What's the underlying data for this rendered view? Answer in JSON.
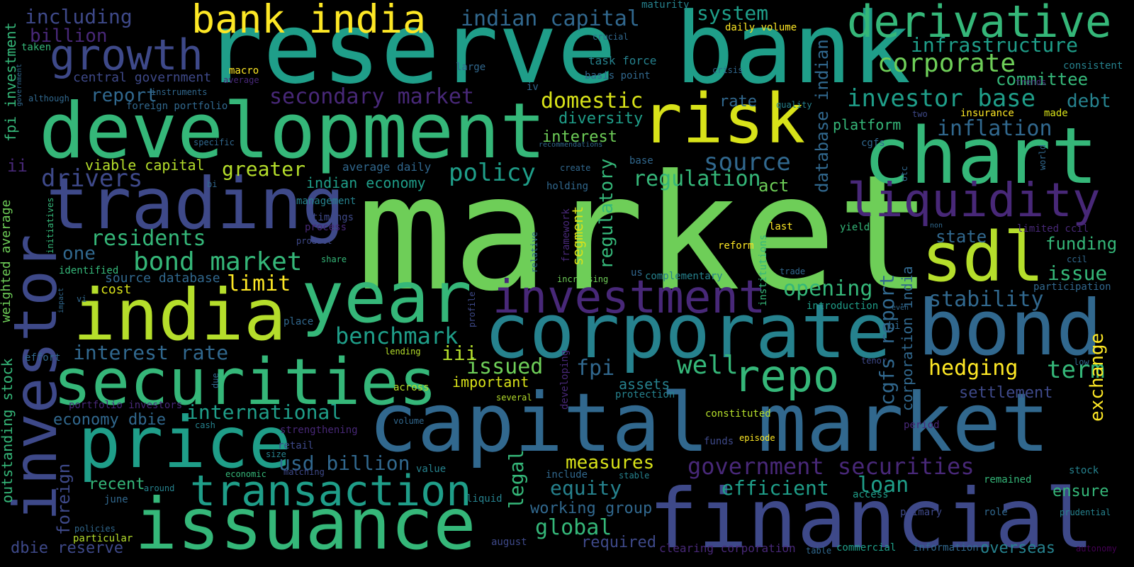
{
  "palette": {
    "background": "#000000",
    "yellow": "#FDE725",
    "lime": "#B5DE2B",
    "green": "#6ECE58",
    "teal_green": "#35B779",
    "teal": "#1F9E89",
    "cyan_blue": "#26828E",
    "blue": "#31688E",
    "indigo": "#3E4989",
    "purple": "#482878",
    "dark_purple": "#440154"
  },
  "words": [
    {
      "text": "market",
      "color": "#6ECE58"
    },
    {
      "text": "reserve bank",
      "color": "#1F9E89"
    },
    {
      "text": "development",
      "color": "#35B779"
    },
    {
      "text": "capital market",
      "color": "#31688E"
    },
    {
      "text": "financial",
      "color": "#3E4989"
    },
    {
      "text": "corporate",
      "color": "#26828E"
    },
    {
      "text": "bond",
      "color": "#31688E"
    },
    {
      "text": "chart",
      "color": "#35B779"
    },
    {
      "text": "trading",
      "color": "#3E4989"
    },
    {
      "text": "india",
      "color": "#B5DE2B"
    },
    {
      "text": "year",
      "color": "#35B779"
    },
    {
      "text": "securities",
      "color": "#35B779"
    },
    {
      "text": "price",
      "color": "#1F9E89"
    },
    {
      "text": "issuance",
      "color": "#35B779"
    },
    {
      "text": "risk",
      "color": "#D8E219"
    },
    {
      "text": "sdl",
      "color": "#B5DE2B"
    },
    {
      "text": "investor",
      "color": "#3E4989"
    },
    {
      "text": "derivative",
      "color": "#35B779"
    },
    {
      "text": "bank india",
      "color": "#FDE725"
    },
    {
      "text": "growth",
      "color": "#3E4989"
    },
    {
      "text": "liquidity",
      "color": "#482878"
    },
    {
      "text": "investment",
      "color": "#482878"
    },
    {
      "text": "repo",
      "color": "#35B779"
    },
    {
      "text": "transaction",
      "color": "#1F9E89"
    },
    {
      "text": "corporate",
      "color": "#6ECE58"
    },
    {
      "text": "investor base",
      "color": "#1F9E89"
    },
    {
      "text": "infrastructure",
      "color": "#1F9E89"
    },
    {
      "text": "indian capital",
      "color": "#31688E"
    },
    {
      "text": "system",
      "color": "#1F9E89"
    },
    {
      "text": "secondary market",
      "color": "#482878"
    },
    {
      "text": "domestic",
      "color": "#D8E219"
    },
    {
      "text": "inflation",
      "color": "#31688E"
    },
    {
      "text": "debt",
      "color": "#26828E"
    },
    {
      "text": "committee",
      "color": "#35B779"
    },
    {
      "text": "source",
      "color": "#31688E"
    },
    {
      "text": "policy",
      "color": "#1F9E89"
    },
    {
      "text": "regulation",
      "color": "#35B779"
    },
    {
      "text": "greater",
      "color": "#B5DE2B"
    },
    {
      "text": "drivers",
      "color": "#3E4989"
    },
    {
      "text": "residents",
      "color": "#35B779"
    },
    {
      "text": "bond market",
      "color": "#35B779"
    },
    {
      "text": "one",
      "color": "#31688E"
    },
    {
      "text": "limit",
      "color": "#FDE725"
    },
    {
      "text": "benchmark",
      "color": "#1F9E89"
    },
    {
      "text": "interest rate",
      "color": "#31688E"
    },
    {
      "text": "international",
      "color": "#1F9E89"
    },
    {
      "text": "issued",
      "color": "#6ECE58"
    },
    {
      "text": "iii",
      "color": "#B5DE2B"
    },
    {
      "text": "fpi",
      "color": "#31688E"
    },
    {
      "text": "well",
      "color": "#35B779"
    },
    {
      "text": "hedging",
      "color": "#FDE725"
    },
    {
      "text": "term",
      "color": "#35B779"
    },
    {
      "text": "stability",
      "color": "#31688E"
    },
    {
      "text": "opening",
      "color": "#35B779"
    },
    {
      "text": "issue",
      "color": "#35B779"
    },
    {
      "text": "funding",
      "color": "#35B779"
    },
    {
      "text": "state",
      "color": "#31688E"
    },
    {
      "text": "settlement",
      "color": "#3E4989"
    },
    {
      "text": "government securities",
      "color": "#482878"
    },
    {
      "text": "efficient",
      "color": "#1F9E89"
    },
    {
      "text": "loan",
      "color": "#1F9E89"
    },
    {
      "text": "equity",
      "color": "#26828E"
    },
    {
      "text": "measures",
      "color": "#D8E219"
    },
    {
      "text": "usd billion",
      "color": "#31688E"
    },
    {
      "text": "global",
      "color": "#35B779"
    },
    {
      "text": "working group",
      "color": "#31688E"
    },
    {
      "text": "required",
      "color": "#3E4989"
    },
    {
      "text": "overseas",
      "color": "#26828E"
    },
    {
      "text": "ensure",
      "color": "#35B779"
    },
    {
      "text": "recent",
      "color": "#35B779"
    },
    {
      "text": "economy dbie",
      "color": "#31688E"
    },
    {
      "text": "cost",
      "color": "#D8E219"
    },
    {
      "text": "report",
      "color": "#31688E"
    },
    {
      "text": "including",
      "color": "#3E4989"
    },
    {
      "text": "billion",
      "color": "#482878"
    },
    {
      "text": "central government",
      "color": "#3E4989"
    },
    {
      "text": "foreign portfolio",
      "color": "#31688E"
    },
    {
      "text": "viable capital",
      "color": "#B5DE2B"
    },
    {
      "text": "indian economy",
      "color": "#1F9E89"
    },
    {
      "text": "average daily",
      "color": "#31688E"
    },
    {
      "text": "interest",
      "color": "#6ECE58"
    },
    {
      "text": "diversity",
      "color": "#1F9E89"
    },
    {
      "text": "rate",
      "color": "#31688E"
    },
    {
      "text": "act",
      "color": "#6ECE58"
    },
    {
      "text": "platform",
      "color": "#35B779"
    },
    {
      "text": "important",
      "color": "#D8E219"
    },
    {
      "text": "assets",
      "color": "#26828E"
    },
    {
      "text": "source database",
      "color": "#31688E"
    },
    {
      "text": "identified",
      "color": "#35B779"
    },
    {
      "text": "macro",
      "color": "#FDE725"
    },
    {
      "text": "task force",
      "color": "#26828E"
    },
    {
      "text": "basis point",
      "color": "#31688E"
    },
    {
      "text": "daily volume",
      "color": "#FDE725"
    },
    {
      "text": "crucial",
      "color": "#31688E"
    },
    {
      "text": "maturity",
      "color": "#26828E"
    },
    {
      "text": "crisis",
      "color": "#31688E"
    },
    {
      "text": "consistent",
      "color": "#26828E"
    },
    {
      "text": "insurance",
      "color": "#FDE725"
    },
    {
      "text": "made",
      "color": "#D8E219"
    },
    {
      "text": "two",
      "color": "#3E4989"
    },
    {
      "text": "quality",
      "color": "#26828E"
    },
    {
      "text": "trends",
      "color": "#482878"
    },
    {
      "text": "large",
      "color": "#31688E"
    },
    {
      "text": "iv",
      "color": "#31688E"
    },
    {
      "text": "specific",
      "color": "#31688E"
    },
    {
      "text": "recommendations",
      "color": "#31688E"
    },
    {
      "text": "create",
      "color": "#31688E"
    },
    {
      "text": "base",
      "color": "#31688E"
    },
    {
      "text": "holding",
      "color": "#31688E"
    },
    {
      "text": "management",
      "color": "#26828E"
    },
    {
      "text": "timings",
      "color": "#3E4989"
    },
    {
      "text": "process",
      "color": "#482878"
    },
    {
      "text": "product",
      "color": "#3E4989"
    },
    {
      "text": "share",
      "color": "#35B779"
    },
    {
      "text": "complementary",
      "color": "#26828E"
    },
    {
      "text": "us",
      "color": "#31688E"
    },
    {
      "text": "increasing",
      "color": "#6ECE58"
    },
    {
      "text": "reform",
      "color": "#FDE725"
    },
    {
      "text": "last",
      "color": "#FDE725"
    },
    {
      "text": "yield",
      "color": "#35B779"
    },
    {
      "text": "non",
      "color": "#31688E"
    },
    {
      "text": "limited ccil",
      "color": "#482878"
    },
    {
      "text": "ccil",
      "color": "#31688E"
    },
    {
      "text": "participation",
      "color": "#31688E"
    },
    {
      "text": "trade",
      "color": "#31688E"
    },
    {
      "text": "introduction",
      "color": "#1F9E89"
    },
    {
      "text": "rbi",
      "color": "#31688E"
    },
    {
      "text": "even",
      "color": "#31688E"
    },
    {
      "text": "tenor",
      "color": "#3E4989"
    },
    {
      "text": "low",
      "color": "#31688E"
    },
    {
      "text": "lending",
      "color": "#B5DE2B"
    },
    {
      "text": "across",
      "color": "#B5DE2B"
    },
    {
      "text": "several",
      "color": "#B5DE2B"
    },
    {
      "text": "protection",
      "color": "#26828E"
    },
    {
      "text": "constituted",
      "color": "#B5DE2B"
    },
    {
      "text": "period",
      "color": "#482878"
    },
    {
      "text": "episode",
      "color": "#FDE725"
    },
    {
      "text": "funds",
      "color": "#3E4989"
    },
    {
      "text": "stock",
      "color": "#26828E"
    },
    {
      "text": "remained",
      "color": "#35B779"
    },
    {
      "text": "access",
      "color": "#1F9E89"
    },
    {
      "text": "primary",
      "color": "#3E4989"
    },
    {
      "text": "role",
      "color": "#31688E"
    },
    {
      "text": "prudential",
      "color": "#26828E"
    },
    {
      "text": "commercial",
      "color": "#1F9E89"
    },
    {
      "text": "information",
      "color": "#31688E"
    },
    {
      "text": "autonomy",
      "color": "#440154"
    },
    {
      "text": "table",
      "color": "#31688E"
    },
    {
      "text": "clearing corporation",
      "color": "#482878"
    },
    {
      "text": "august",
      "color": "#3E4989"
    },
    {
      "text": "liquid",
      "color": "#26828E"
    },
    {
      "text": "value",
      "color": "#26828E"
    },
    {
      "text": "volume",
      "color": "#31688E"
    },
    {
      "text": "include",
      "color": "#31688E"
    },
    {
      "text": "stable",
      "color": "#26828E"
    },
    {
      "text": "strengthening",
      "color": "#482878"
    },
    {
      "text": "retail",
      "color": "#3E4989"
    },
    {
      "text": "size",
      "color": "#26828E"
    },
    {
      "text": "economic",
      "color": "#35B779"
    },
    {
      "text": "matching",
      "color": "#3E4989"
    },
    {
      "text": "around",
      "color": "#26828E"
    },
    {
      "text": "june",
      "color": "#31688E"
    },
    {
      "text": "policies",
      "color": "#31688E"
    },
    {
      "text": "particular",
      "color": "#B5DE2B"
    },
    {
      "text": "dbie reserve",
      "color": "#3E4989"
    },
    {
      "text": "portfolio investors",
      "color": "#482878"
    },
    {
      "text": "cash",
      "color": "#26828E"
    },
    {
      "text": "effort",
      "color": "#31688E"
    },
    {
      "text": "vi",
      "color": "#31688E"
    },
    {
      "text": "place",
      "color": "#31688E"
    },
    {
      "text": "ii",
      "color": "#482878"
    },
    {
      "text": "taken",
      "color": "#35B779"
    },
    {
      "text": "although",
      "color": "#31688E"
    },
    {
      "text": "instruments",
      "color": "#31688E"
    },
    {
      "text": "average",
      "color": "#482878"
    },
    {
      "text": "bi",
      "color": "#31688E"
    },
    {
      "text": "cgfs",
      "color": "#31688E"
    },
    {
      "text": "fpi investment",
      "color": "#35B779"
    },
    {
      "text": "government",
      "color": "#31688E"
    },
    {
      "text": "initiatives",
      "color": "#35B779"
    },
    {
      "text": "weighted average",
      "color": "#6ECE58"
    },
    {
      "text": "outstanding stock",
      "color": "#35B779"
    },
    {
      "text": "foreign",
      "color": "#3E4989"
    },
    {
      "text": "impact",
      "color": "#31688E"
    },
    {
      "text": "due",
      "color": "#31688E"
    },
    {
      "text": "legal",
      "color": "#35B779"
    },
    {
      "text": "developing",
      "color": "#482878"
    },
    {
      "text": "profile",
      "color": "#3E4989"
    },
    {
      "text": "relative",
      "color": "#31688E"
    },
    {
      "text": "framework",
      "color": "#482878"
    },
    {
      "text": "segment",
      "color": "#D8E219"
    },
    {
      "text": "regulatory",
      "color": "#35B779"
    },
    {
      "text": "database indian",
      "color": "#31688E"
    },
    {
      "text": "cgfs report",
      "color": "#31688E"
    },
    {
      "text": "corporation india",
      "color": "#31688E"
    },
    {
      "text": "institutions",
      "color": "#35B779"
    },
    {
      "text": "exchange",
      "color": "#FDE725"
    },
    {
      "text": "world",
      "color": "#31688E"
    },
    {
      "text": "otc",
      "color": "#31688E"
    }
  ]
}
